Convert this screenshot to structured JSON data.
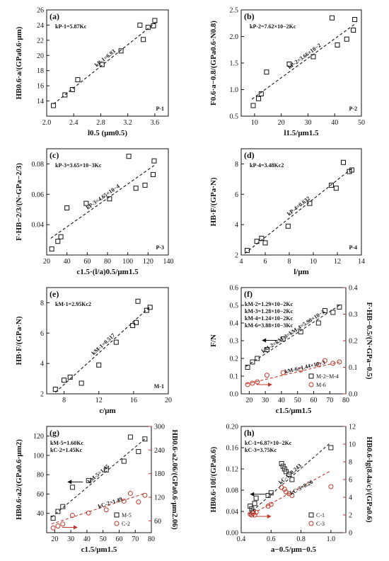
{
  "chart_data": [
    {
      "type": "scatter",
      "panel": "(a)",
      "xlabel": "l0.5 (μm0.5)",
      "ylabel": "HB0.6·a/(GPa0.6·μm)",
      "xlim": [
        2.0,
        3.8
      ],
      "ylim": [
        12,
        26
      ],
      "xticks": [
        "2.0",
        "2.4",
        "2.8",
        "3.2",
        "3.6"
      ],
      "yticks": [
        "14",
        "16",
        "18",
        "20",
        "22",
        "24",
        "26"
      ],
      "equation": "kP-1=5.87Kc",
      "slope_label": "kP-1=6.93",
      "tag": "P-1",
      "fit": [
        [
          2.1,
          13.6
        ],
        [
          3.62,
          24.4
        ]
      ],
      "x": [
        2.1,
        2.27,
        2.38,
        2.46,
        2.82,
        3.1,
        3.38,
        3.43,
        3.5,
        3.58,
        3.6
      ],
      "y": [
        13.4,
        14.8,
        15.5,
        16.8,
        18.8,
        20.6,
        24.0,
        22.1,
        23.7,
        23.9,
        24.6
      ]
    },
    {
      "type": "scatter",
      "panel": "(b)",
      "xlabel": "l1.5/μm1.5",
      "ylabel": "F0.6·a−0.8/(GPa0.6·N0.8)",
      "xlim": [
        5,
        50
      ],
      "ylim": [
        0.5,
        2.5
      ],
      "xticks": [
        "10",
        "20",
        "30",
        "40",
        "50"
      ],
      "yticks": [
        "0.5",
        "1.0",
        "1.5",
        "2.0",
        "2.5"
      ],
      "equation": "kP-2=7.62×10−2Kc",
      "slope_label": "kP-2=3.66×10−2",
      "tag": "P-2",
      "fit": [
        [
          9,
          0.82
        ],
        [
          48,
          2.25
        ]
      ],
      "x": [
        9.5,
        11.5,
        12.5,
        14.5,
        23,
        32,
        39,
        41,
        44.5,
        47,
        47.5
      ],
      "y": [
        0.7,
        0.83,
        0.92,
        1.33,
        1.48,
        1.62,
        2.35,
        1.84,
        1.95,
        2.12,
        2.32
      ]
    },
    {
      "type": "scatter",
      "panel": "(c)",
      "xlabel": "c1.5·(l/a)0.5/μm1.5",
      "ylabel": "F·HB−2/3/(N·GPa−2/3)",
      "xlim": [
        20,
        140
      ],
      "ylim": [
        0.02,
        0.09
      ],
      "xticks": [
        "20",
        "40",
        "60",
        "80",
        "100",
        "120",
        "140"
      ],
      "yticks": [
        "0.04",
        "0.06",
        "0.08"
      ],
      "equation": "kP-3=3.65×10−3Kc",
      "slope_label": "kP-3=4.65×10−4",
      "tag": "P-3",
      "fit": [
        [
          24,
          0.031
        ],
        [
          126,
          0.079
        ]
      ],
      "x": [
        25,
        31,
        34,
        40,
        59,
        82,
        101,
        108,
        117,
        125,
        126
      ],
      "y": [
        0.024,
        0.029,
        0.032,
        0.051,
        0.054,
        0.057,
        0.085,
        0.064,
        0.066,
        0.073,
        0.082
      ]
    },
    {
      "type": "scatter",
      "panel": "(d)",
      "xlabel": "l/μm",
      "ylabel": "HB·F/(GPa·N)",
      "xlim": [
        4,
        14
      ],
      "ylim": [
        2,
        9
      ],
      "xticks": [
        "4",
        "6",
        "8",
        "10",
        "12",
        "14"
      ],
      "yticks": [
        "2",
        "4",
        "6",
        "8"
      ],
      "equation": "kP-4=3.48Kc2",
      "slope_label": "kP-4=0.632",
      "tag": "P-4",
      "fit": [
        [
          4.3,
          2.1
        ],
        [
          13.2,
          7.7
        ]
      ],
      "x": [
        4.5,
        5.3,
        5.7,
        6.0,
        7.9,
        9.7,
        11.5,
        11.9,
        12.5,
        13.0,
        13.2
      ],
      "y": [
        2.3,
        2.9,
        3.1,
        2.8,
        3.9,
        5.4,
        6.6,
        6.4,
        8.1,
        7.5,
        7.6
      ]
    },
    {
      "type": "scatter",
      "panel": "(e)",
      "xlabel": "c/μm",
      "ylabel": "HB·F/(GPa·N)",
      "xlim": [
        6,
        20
      ],
      "ylim": [
        2,
        9
      ],
      "xticks": [
        "8",
        "12",
        "16",
        "20"
      ],
      "yticks": [
        "2",
        "4",
        "6",
        "8"
      ],
      "equation": "kM-1=2.95Kc2",
      "slope_label": "kM-1=0.517",
      "tag": "M-1",
      "fit": [
        [
          7.0,
          2.1
        ],
        [
          18.0,
          7.8
        ]
      ],
      "x": [
        7.0,
        8.0,
        8.7,
        10.0,
        12.0,
        14.0,
        15.9,
        16.3,
        16.5,
        17.5,
        17.9
      ],
      "y": [
        2.3,
        2.9,
        3.1,
        2.7,
        3.9,
        5.4,
        6.5,
        6.7,
        8.1,
        7.5,
        7.7
      ]
    },
    {
      "type": "scatter",
      "panel": "(f)",
      "xlabel": "c1.5/μm1.5",
      "ylabel": "F/N",
      "ylabel_right": "F·HB−0.5/(N·GPa−0.5)",
      "xlim": [
        15,
        80
      ],
      "ylim": [
        0,
        0.6
      ],
      "ylim_right": [
        0,
        0.4
      ],
      "xticks": [
        "20",
        "30",
        "40",
        "50",
        "60",
        "70",
        "80"
      ],
      "yticks": [
        "0.0",
        "0.1",
        "0.2",
        "0.3",
        "0.4",
        "0.5",
        "0.6"
      ],
      "yticks_right": [
        "0.0",
        "0.1",
        "0.2",
        "0.3",
        "0.4"
      ],
      "equations": [
        "kM-2=1.29×10−2Kc",
        "kM-3=1.28×10−2Kc",
        "kM-4=1.24×10−2Kc",
        "kM-6=3.88×10−3Kc"
      ],
      "slope_label": "kM-2=kM-3=kM-4=5.90×10−3",
      "slope_label_2": "kM-6=1.44×10−3",
      "series": [
        {
          "name": "M-2~M-4",
          "axis": "left",
          "marker": "square",
          "color": "#222222",
          "fit": [
            [
              18,
              0.155
            ],
            [
              76,
              0.5
            ]
          ],
          "x": [
            19,
            22,
            25,
            31,
            41,
            52,
            63,
            67,
            72,
            76
          ],
          "y": [
            0.15,
            0.18,
            0.2,
            0.25,
            0.31,
            0.35,
            0.4,
            0.47,
            0.46,
            0.49
          ]
        },
        {
          "name": "M-6",
          "axis": "right",
          "marker": "circle",
          "color": "#c0392b",
          "fit": [
            [
              18,
              0.037
            ],
            [
              76,
              0.12
            ]
          ],
          "x": [
            19,
            22,
            25,
            31,
            41,
            52,
            63,
            67,
            72,
            76
          ],
          "y": [
            0.035,
            0.04,
            0.045,
            0.07,
            0.08,
            0.09,
            0.11,
            0.125,
            0.115,
            0.12
          ]
        }
      ]
    },
    {
      "type": "scatter",
      "panel": "(g)",
      "xlabel": "c1.5/μm1.5",
      "ylabel": "HB0.6·a2/(GPa0.6·μm2)",
      "ylabel_right": "HB0.6·a2.06/(GPa0.6·μm2.06)",
      "xlim": [
        15,
        80
      ],
      "ylim": [
        20,
        130
      ],
      "ylim_right": [
        30,
        300
      ],
      "xticks": [
        "20",
        "30",
        "40",
        "50",
        "60",
        "70",
        "80"
      ],
      "yticks": [
        "40",
        "60",
        "80",
        "100",
        "120"
      ],
      "yticks_right": [
        "60",
        "120",
        "180",
        "240",
        "300"
      ],
      "equations": [
        "kM-5=1.60Kc",
        "kC-2=1.45Kc"
      ],
      "slope_label": "kM-5=1.45",
      "slope_label_2": "kC-2=1.49",
      "series": [
        {
          "name": "M-5",
          "axis": "left",
          "marker": "square",
          "color": "#222222",
          "fit": [
            [
              18,
              36
            ],
            [
              76,
              117
            ]
          ],
          "x": [
            19,
            22,
            25,
            31,
            41,
            52,
            63,
            67,
            72,
            76
          ],
          "y": [
            35,
            42,
            47,
            67,
            74,
            85,
            94,
            119,
            104,
            117
          ]
        },
        {
          "name": "C-2",
          "axis": "right",
          "marker": "circle",
          "color": "#c0392b",
          "fit": [
            [
              18,
              52
            ],
            [
              76,
              130
            ]
          ],
          "x": [
            19,
            22,
            25,
            31,
            41,
            52,
            63,
            67,
            72,
            76
          ],
          "y": [
            42,
            47,
            52,
            74,
            80,
            88,
            110,
            130,
            108,
            125
          ]
        }
      ]
    },
    {
      "type": "scatter",
      "panel": "(h)",
      "xlabel": "a−0.5/μm−0.5",
      "ylabel": "HB0.6·10f/(GPa0.6)",
      "ylabel_right": "HB0.6·lg(8.4a/c)/(GPa0.6)",
      "xlim": [
        0.4,
        1.1
      ],
      "ylim": [
        0,
        0.2
      ],
      "ylim_right": [
        0,
        12
      ],
      "xticks": [
        "0.4",
        "0.6",
        "0.8",
        "1.0"
      ],
      "yticks": [
        "0.00",
        "0.04",
        "0.08",
        "0.12",
        "0.16",
        "0.20"
      ],
      "yticks_right": [
        "0",
        "2",
        "4",
        "6",
        "8",
        "10",
        "12"
      ],
      "equations": [
        "kC-1=6.87×10−2Kc",
        "kC-3=3.75Kc"
      ],
      "slope_label": "kC-1=0.243",
      "slope_label_2": "kC-3=8.26",
      "series": [
        {
          "name": "C-1",
          "axis": "left",
          "marker": "square",
          "color": "#222222",
          "fit": [
            [
              0.45,
              0.035
            ],
            [
              1.0,
              0.17
            ]
          ],
          "x": [
            0.46,
            0.47,
            0.48,
            0.49,
            0.5,
            0.58,
            0.6,
            0.67,
            0.68,
            0.69,
            0.7,
            0.72,
            0.74,
            1.0
          ],
          "y": [
            0.05,
            0.045,
            0.04,
            0.055,
            0.065,
            0.07,
            0.075,
            0.13,
            0.125,
            0.12,
            0.115,
            0.11,
            0.1,
            0.16
          ]
        },
        {
          "name": "C-3",
          "axis": "right",
          "marker": "circle",
          "color": "#c0392b",
          "fit": [
            [
              0.45,
              1.9
            ],
            [
              1.0,
              7.0
            ]
          ],
          "x": [
            0.46,
            0.47,
            0.48,
            0.49,
            0.5,
            0.58,
            0.6,
            0.67,
            0.69,
            0.7,
            0.72,
            0.74,
            1.0
          ],
          "y": [
            2.1,
            2.0,
            2.2,
            2.0,
            2.3,
            3.0,
            3.2,
            5.1,
            4.9,
            4.6,
            4.4,
            4.2,
            5.2
          ]
        }
      ]
    }
  ]
}
